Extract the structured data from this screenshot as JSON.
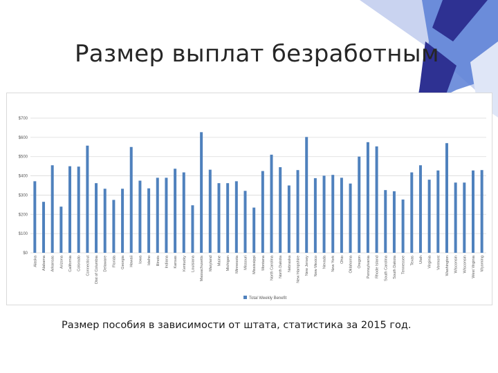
{
  "slide": {
    "title": "Размер выплат безработным",
    "caption": "Размер пособия в зависимости от штата, статистика за 2015 год."
  },
  "colors": {
    "bar": "#4f81bd",
    "grid": "#d9d9d9",
    "axis_text": "#595959",
    "deco_dark": "#2e3192",
    "deco_mid": "#5b7fd6",
    "deco_light": "#c9d3f0"
  },
  "chart_data": {
    "type": "bar",
    "title": "",
    "xlabel": "",
    "ylabel": "",
    "ylim": [
      0,
      700
    ],
    "ytick_labels": [
      "$0",
      "$100",
      "$200",
      "$300",
      "$400",
      "$500",
      "$600",
      "$700"
    ],
    "grid": "horizontal",
    "legend_position": "bottom",
    "series": [
      {
        "name": "Total Weekly Benefit",
        "color": "#4f81bd",
        "values": [
          372,
          265,
          455,
          240,
          450,
          448,
          557,
          362,
          333,
          275,
          333,
          550,
          375,
          335,
          390,
          390,
          437,
          418,
          247,
          627,
          432,
          362,
          362,
          372,
          322,
          235,
          425,
          510,
          445,
          350,
          430,
          602,
          388,
          401,
          405,
          390,
          360,
          500,
          575,
          553,
          326,
          320,
          277,
          418,
          455,
          380,
          428,
          570,
          365,
          365,
          428,
          430
        ]
      }
    ],
    "categories": [
      "Alaska",
      "Alabama",
      "Arkansas",
      "Arizona",
      "California",
      "Colorado",
      "Connecticut",
      "Dist of Columbia",
      "Delaware",
      "Florida",
      "Georgia",
      "Hawaii",
      "Iowa",
      "Idaho",
      "Illinois",
      "Indiana",
      "Kansas",
      "Kentucky",
      "Louisiana",
      "Massachusetts",
      "Maryland",
      "Maine",
      "Michigan",
      "Minnesota",
      "Missouri",
      "Mississippi",
      "Montana",
      "North Carolina",
      "North Dakota",
      "Nebraska",
      "New Hampshire",
      "New Jersey",
      "New Mexico",
      "Nevada",
      "New York",
      "Ohio",
      "Oklahoma",
      "Oregon",
      "Pennsylvania",
      "Rhode Island",
      "South Carolina",
      "South Dakota",
      "Tennessee",
      "Texas",
      "Utah",
      "Virginia",
      "Vermont",
      "Washington",
      "Wisconsin",
      "Wisconsin",
      "West Virginia",
      "Wyoming"
    ]
  }
}
